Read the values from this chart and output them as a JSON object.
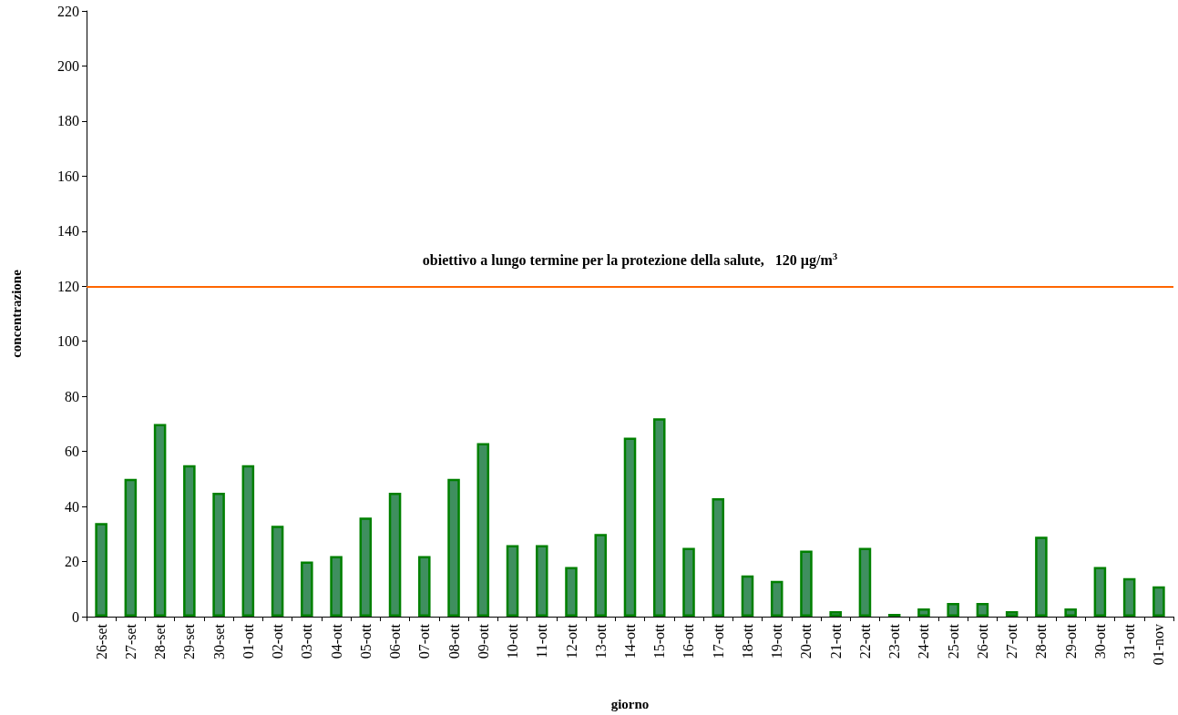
{
  "chart_data": {
    "type": "bar",
    "xlabel": "giorno",
    "ylabel": "concentrazione",
    "categories": [
      "26-set",
      "27-set",
      "28-set",
      "29-set",
      "30-set",
      "01-ott",
      "02-ott",
      "03-ott",
      "04-ott",
      "05-ott",
      "06-ott",
      "07-ott",
      "08-ott",
      "09-ott",
      "10-ott",
      "11-ott",
      "12-ott",
      "13-ott",
      "14-ott",
      "15-ott",
      "16-ott",
      "17-ott",
      "18-ott",
      "19-ott",
      "20-ott",
      "21-ott",
      "22-ott",
      "23-ott",
      "24-ott",
      "25-ott",
      "26-ott",
      "27-ott",
      "28-ott",
      "29-ott",
      "30-ott",
      "31-ott",
      "01-nov"
    ],
    "values": [
      34,
      50,
      70,
      55,
      45,
      55,
      33,
      20,
      22,
      36,
      45,
      22,
      50,
      63,
      26,
      26,
      18,
      30,
      65,
      72,
      25,
      43,
      15,
      13,
      24,
      2,
      25,
      1,
      3,
      5,
      5,
      2,
      29,
      3,
      18,
      14,
      11
    ],
    "color": "#3f8f5f",
    "ylim": [
      0,
      220
    ],
    "yticks": [
      0,
      20,
      40,
      60,
      80,
      100,
      120,
      140,
      160,
      180,
      200,
      220
    ],
    "grid": false,
    "ref_lines": [
      {
        "axis": "y",
        "value": 120,
        "label": "obiettivo a lungo termine per la protezione della salute,   120 µg/m$^{3}$",
        "color": "#ff6600"
      }
    ]
  }
}
